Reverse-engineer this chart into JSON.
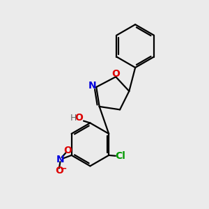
{
  "bg_color": "#ebebeb",
  "atom_colors": {
    "C": "#000000",
    "N": "#0000dd",
    "O": "#dd0000",
    "Cl": "#009900",
    "H": "#666666"
  },
  "bond_color": "#000000",
  "bond_width": 1.6
}
